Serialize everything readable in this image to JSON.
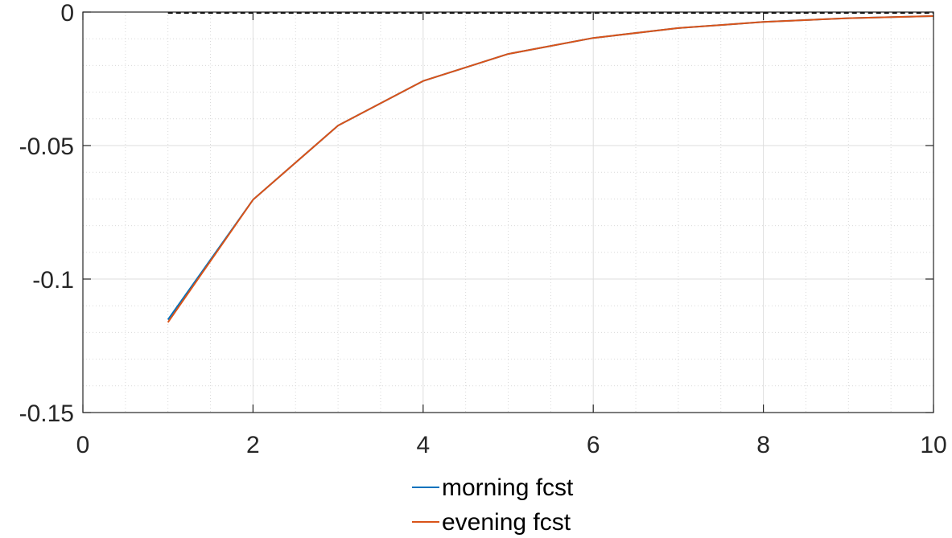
{
  "chart_data": {
    "type": "line",
    "title": "",
    "xlabel": "",
    "ylabel": "",
    "xlim": [
      0,
      10
    ],
    "ylim": [
      -0.15,
      0
    ],
    "x_ticks": [
      0,
      2,
      4,
      6,
      8,
      10
    ],
    "y_ticks": [
      0,
      -0.05,
      -0.1,
      -0.15
    ],
    "x_tick_labels": [
      "0",
      "2",
      "4",
      "6",
      "8",
      "10"
    ],
    "y_tick_labels": [
      "0",
      "-0.05",
      "-0.1",
      "-0.15"
    ],
    "grid": true,
    "minor_grid": true,
    "legend_position": "bottom-center",
    "reference_line": {
      "y": 0,
      "style": "dashed",
      "color": "#000000"
    },
    "x": [
      1,
      2,
      3,
      4,
      5,
      6,
      7,
      8,
      9,
      10
    ],
    "series": [
      {
        "name": "morning fcst",
        "color": "#0072BD",
        "values": [
          -0.1152,
          -0.0703,
          -0.0425,
          -0.0258,
          -0.0157,
          -0.0097,
          -0.006,
          -0.0037,
          -0.0023,
          -0.0015
        ]
      },
      {
        "name": "evening fcst",
        "color": "#D95319",
        "values": [
          -0.1162,
          -0.0703,
          -0.0425,
          -0.0258,
          -0.0157,
          -0.0097,
          -0.006,
          -0.0037,
          -0.0023,
          -0.0015
        ]
      }
    ]
  }
}
